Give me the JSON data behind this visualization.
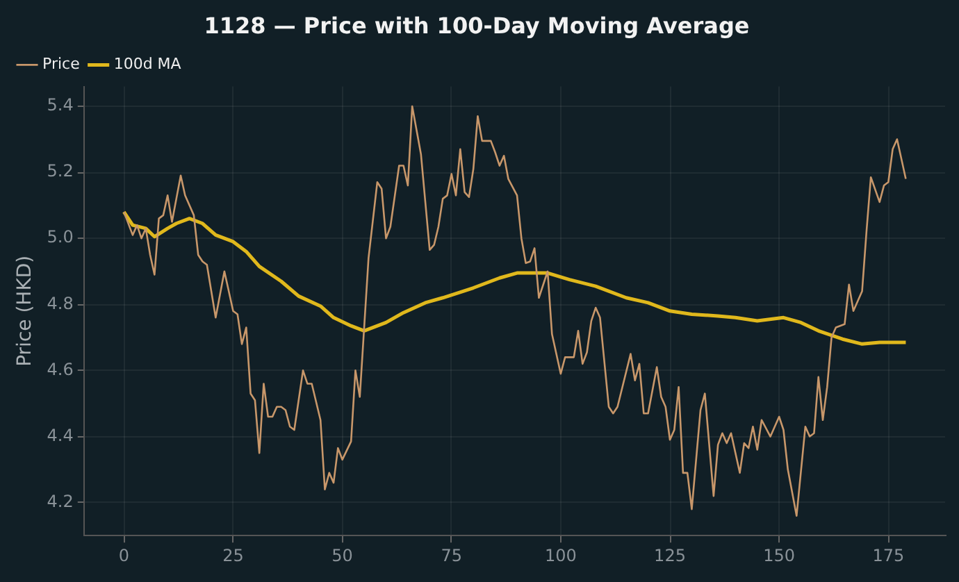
{
  "chart_data": {
    "type": "line",
    "title": "1128 — Price with 100-Day Moving Average",
    "ylabel": "Price (HKD)",
    "xlim": [
      -9,
      188
    ],
    "xticks": [
      0,
      25,
      50,
      75,
      100,
      125,
      150,
      175
    ],
    "ylim": [
      4.1,
      5.46
    ],
    "yticks": [
      {
        "value": 4.2,
        "label": "4.2"
      },
      {
        "value": 4.4,
        "label": "4.4"
      },
      {
        "value": 4.6,
        "label": "4.6"
      },
      {
        "value": 4.8,
        "label": "4.8"
      },
      {
        "value": 5.0,
        "label": "5.0"
      },
      {
        "value": 5.2,
        "label": "5.2"
      },
      {
        "value": 5.4,
        "label": "5.4"
      }
    ],
    "grid": true,
    "legend": "top left",
    "marker": "none",
    "line_style": "solid",
    "series": [
      {
        "name": "Price",
        "color": "#c8976a",
        "x": [
          0,
          2,
          3,
          4,
          5,
          6,
          7,
          8,
          9,
          10,
          11,
          13,
          14,
          16,
          17,
          18,
          19,
          21,
          23,
          25,
          26,
          27,
          28,
          29,
          30,
          31,
          32,
          33,
          34,
          35,
          36,
          37,
          38,
          39,
          41,
          42,
          43,
          45,
          46,
          47,
          48,
          49,
          50,
          52,
          53,
          54,
          56,
          58,
          59,
          60,
          61,
          63,
          64,
          65,
          66,
          68,
          70,
          71,
          72,
          73,
          74,
          75,
          76,
          77,
          78,
          79,
          80,
          81,
          82,
          84,
          85,
          86,
          87,
          88,
          90,
          91,
          92,
          93,
          94,
          95,
          96,
          97,
          98,
          100,
          101,
          103,
          104,
          105,
          106,
          107,
          108,
          109,
          111,
          112,
          113,
          116,
          117,
          118,
          119,
          120,
          122,
          123,
          124,
          125,
          126,
          127,
          128,
          129,
          130,
          132,
          133,
          135,
          136,
          137,
          138,
          139,
          141,
          142,
          143,
          144,
          145,
          146,
          148,
          150,
          151,
          152,
          154,
          156,
          157,
          158,
          159,
          160,
          161,
          162,
          163,
          165,
          166,
          167,
          169,
          170,
          171,
          173,
          174,
          175,
          176,
          177,
          179
        ],
        "values": [
          5.08,
          5.01,
          5.04,
          5.0,
          5.03,
          4.95,
          4.89,
          5.06,
          5.07,
          5.13,
          5.05,
          5.19,
          5.13,
          5.07,
          4.95,
          4.93,
          4.92,
          4.76,
          4.9,
          4.78,
          4.77,
          4.68,
          4.73,
          4.53,
          4.51,
          4.35,
          4.56,
          4.46,
          4.46,
          4.49,
          4.49,
          4.48,
          4.43,
          4.42,
          4.6,
          4.56,
          4.56,
          4.45,
          4.24,
          4.29,
          4.26,
          4.365,
          4.33,
          4.385,
          4.6,
          4.52,
          4.94,
          5.17,
          5.15,
          5.0,
          5.035,
          5.22,
          5.22,
          5.16,
          5.4,
          5.255,
          4.965,
          4.98,
          5.035,
          5.12,
          5.13,
          5.195,
          5.13,
          5.27,
          5.14,
          5.125,
          5.21,
          5.37,
          5.295,
          5.295,
          5.26,
          5.22,
          5.25,
          5.18,
          5.13,
          5.0,
          4.925,
          4.93,
          4.97,
          4.82,
          4.86,
          4.9,
          4.71,
          4.59,
          4.64,
          4.64,
          4.72,
          4.62,
          4.655,
          4.75,
          4.79,
          4.76,
          4.49,
          4.47,
          4.49,
          4.65,
          4.57,
          4.62,
          4.47,
          4.47,
          4.61,
          4.52,
          4.49,
          4.39,
          4.42,
          4.55,
          4.29,
          4.29,
          4.18,
          4.48,
          4.53,
          4.22,
          4.375,
          4.41,
          4.38,
          4.41,
          4.29,
          4.38,
          4.365,
          4.43,
          4.36,
          4.45,
          4.4,
          4.46,
          4.42,
          4.3,
          4.16,
          4.43,
          4.4,
          4.41,
          4.58,
          4.45,
          4.55,
          4.7,
          4.73,
          4.74,
          4.86,
          4.78,
          4.84,
          5.02,
          5.185,
          5.11,
          5.16,
          5.17,
          5.27,
          5.3,
          5.18
        ]
      },
      {
        "name": "100d MA",
        "color": "#e0b81c",
        "x": [
          0,
          2,
          5,
          7,
          10,
          12,
          15,
          18,
          21,
          25,
          28,
          31,
          36,
          40,
          45,
          48,
          52,
          55,
          60,
          64,
          69,
          73,
          80,
          86,
          90,
          97,
          102,
          108,
          115,
          120,
          125,
          130,
          136,
          140,
          145,
          151,
          155,
          159,
          164.5,
          169,
          173,
          179
        ],
        "values": [
          5.08,
          5.04,
          5.03,
          5.005,
          5.03,
          5.045,
          5.06,
          5.045,
          5.01,
          4.99,
          4.96,
          4.915,
          4.87,
          4.825,
          4.795,
          4.76,
          4.735,
          4.72,
          4.745,
          4.775,
          4.805,
          4.82,
          4.85,
          4.88,
          4.895,
          4.895,
          4.875,
          4.855,
          4.82,
          4.805,
          4.78,
          4.77,
          4.765,
          4.76,
          4.75,
          4.76,
          4.745,
          4.72,
          4.695,
          4.68,
          4.685,
          4.685
        ]
      }
    ]
  }
}
